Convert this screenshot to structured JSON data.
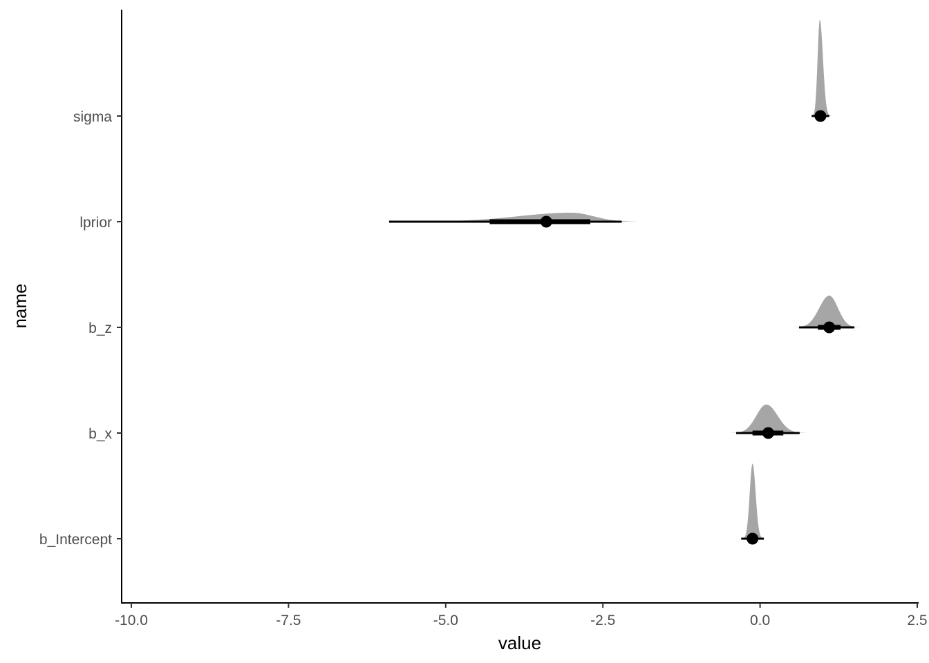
{
  "chart_data": {
    "type": "halfeye",
    "xlabel": "value",
    "ylabel": "name",
    "xlim": [
      -10.0,
      2.5
    ],
    "x_ticks": [
      "-10.0",
      "-7.5",
      "-5.0",
      "-2.5",
      "0.0",
      "2.5"
    ],
    "x_tick_values": [
      -10.0,
      -7.5,
      -5.0,
      -2.5,
      0.0,
      2.5
    ],
    "categories": [
      "sigma",
      "lprior",
      "b_z",
      "b_x",
      "b_Intercept"
    ],
    "grid": false,
    "colors": {
      "density": "#a6a6a6",
      "interval": "#000000",
      "axis": "#000000",
      "tick_text": "#4d4d4d"
    },
    "series": [
      {
        "name": "sigma",
        "median": 0.96,
        "interval_66": [
          0.9,
          1.03
        ],
        "interval_95": [
          0.82,
          1.1
        ],
        "density_range": [
          0.78,
          1.3
        ],
        "density_mode": 0.95,
        "density_sd_left": 0.035,
        "density_sd_right": 0.05,
        "density_height": 0.91
      },
      {
        "name": "lprior",
        "median": -3.4,
        "interval_66": [
          -4.3,
          -2.7
        ],
        "interval_95": [
          -5.9,
          -2.2
        ],
        "density_range": [
          -6.0,
          -1.95
        ],
        "density_mode": -3.0,
        "density_sd_left": 0.85,
        "density_sd_right": 0.35,
        "density_height": 0.085
      },
      {
        "name": "b_z",
        "median": 1.1,
        "interval_66": [
          0.92,
          1.28
        ],
        "interval_95": [
          0.62,
          1.5
        ],
        "density_range": [
          0.5,
          1.65
        ],
        "density_mode": 1.1,
        "density_sd_left": 0.16,
        "density_sd_right": 0.14,
        "density_height": 0.3
      },
      {
        "name": "b_x",
        "median": 0.13,
        "interval_66": [
          -0.12,
          0.37
        ],
        "interval_95": [
          -0.38,
          0.63
        ],
        "density_range": [
          -0.55,
          0.85
        ],
        "density_mode": 0.1,
        "density_sd_left": 0.16,
        "density_sd_right": 0.18,
        "density_height": 0.27
      },
      {
        "name": "b_Intercept",
        "median": -0.12,
        "interval_66": [
          -0.19,
          -0.04
        ],
        "interval_95": [
          -0.3,
          0.06
        ],
        "density_range": [
          -0.35,
          0.15
        ],
        "density_mode": -0.12,
        "density_sd_left": 0.045,
        "density_sd_right": 0.05,
        "density_height": 0.71
      }
    ]
  }
}
